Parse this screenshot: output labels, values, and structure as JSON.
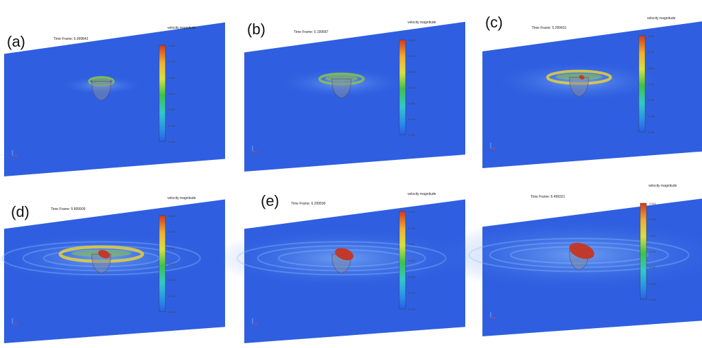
{
  "panels": [
    {
      "label": "(a)",
      "time_frame": "Time Frame: 5.099843"
    },
    {
      "label": "(b)",
      "time_frame": "Time Frame: 5.199587"
    },
    {
      "label": "(c)",
      "time_frame": "Time Frame: 5.299431"
    },
    {
      "label": "(d)",
      "time_frame": "Time Frame: 5.899909"
    },
    {
      "label": "(e)",
      "time_frame": "Time Frame: 6.299590"
    },
    {
      "label": "",
      "time_frame": "Time Frame: 6.499321"
    }
  ],
  "colorbar": {
    "title": "velocity magnitude",
    "ticks": [
      "0.842",
      "0.702",
      "0.561",
      "0.421",
      "0.281",
      "0.140",
      "0.000"
    ]
  },
  "colors": {
    "plane": "#2f5fe0",
    "plane_dark": "#2350c8",
    "hull": "#c0392b",
    "wake_green": "#8bc34a",
    "wake_yellow": "#e6d03a"
  }
}
